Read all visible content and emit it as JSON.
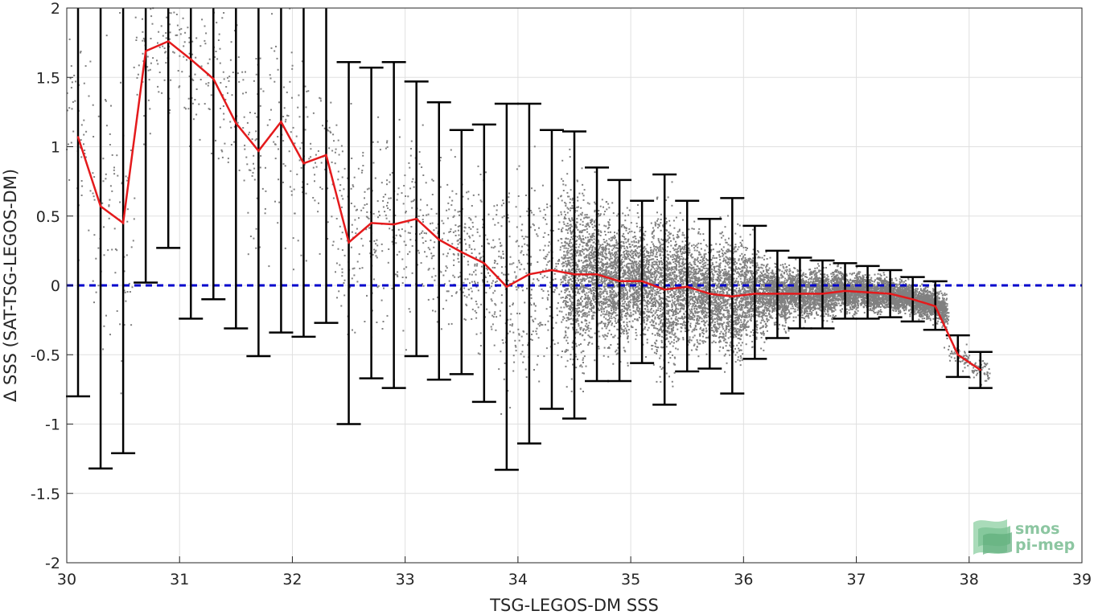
{
  "chart_data": {
    "type": "scatter",
    "xlabel": "TSG-LEGOS-DM SSS",
    "ylabel": "Δ SSS (SAT-TSG-LEGOS-DM)",
    "xlim": [
      30,
      39
    ],
    "ylim": [
      -2,
      2
    ],
    "x_ticks": [
      "30",
      "31",
      "32",
      "33",
      "34",
      "35",
      "36",
      "37",
      "38",
      "39"
    ],
    "y_ticks": [
      "-2",
      "-1.5",
      "-1",
      "-0.5",
      "0",
      "0.5",
      "1",
      "1.5",
      "2"
    ],
    "grid": true,
    "reference_line": {
      "y": 0,
      "style": "dashed",
      "color": "#0000cc"
    },
    "scatter_color": "#808080",
    "series": [
      {
        "type": "line",
        "color": "#e41a1c",
        "x": [
          30.1,
          30.3,
          30.5,
          30.7,
          30.9,
          31.1,
          31.3,
          31.5,
          31.7,
          31.9,
          32.1,
          32.3,
          32.5,
          32.7,
          32.9,
          33.1,
          33.3,
          33.5,
          33.7,
          33.9,
          34.1,
          34.3,
          34.5,
          34.7,
          34.9,
          35.1,
          35.3,
          35.5,
          35.7,
          35.9,
          36.1,
          36.3,
          36.5,
          36.7,
          36.9,
          37.1,
          37.3,
          37.5,
          37.7,
          37.9,
          38.1
        ],
        "y": [
          1.07,
          0.57,
          0.45,
          1.69,
          1.76,
          1.63,
          1.49,
          1.17,
          0.97,
          1.18,
          0.88,
          0.94,
          0.31,
          0.45,
          0.44,
          0.48,
          0.33,
          0.24,
          0.16,
          -0.01,
          0.08,
          0.11,
          0.08,
          0.08,
          0.03,
          0.03,
          -0.03,
          -0.01,
          -0.06,
          -0.08,
          -0.06,
          -0.06,
          -0.06,
          -0.06,
          -0.04,
          -0.05,
          -0.06,
          -0.1,
          -0.15,
          -0.5,
          -0.61
        ]
      },
      {
        "type": "errorbar",
        "color": "#000000",
        "x": [
          30.1,
          30.3,
          30.5,
          30.7,
          30.9,
          31.1,
          31.3,
          31.5,
          31.7,
          31.9,
          32.1,
          32.3,
          32.5,
          32.7,
          32.9,
          33.1,
          33.3,
          33.5,
          33.7,
          33.9,
          34.1,
          34.3,
          34.5,
          34.7,
          34.9,
          35.1,
          35.3,
          35.5,
          35.7,
          35.9,
          36.1,
          36.3,
          36.5,
          36.7,
          36.9,
          37.1,
          37.3,
          37.5,
          37.7,
          37.9,
          38.1
        ],
        "low": [
          -0.8,
          -1.32,
          -1.21,
          0.02,
          0.27,
          -0.24,
          -0.1,
          -0.31,
          -0.51,
          -0.34,
          -0.37,
          -0.27,
          -1.0,
          -0.67,
          -0.74,
          -0.51,
          -0.68,
          -0.64,
          -0.84,
          -1.33,
          -1.14,
          -0.89,
          -0.96,
          -0.69,
          -0.69,
          -0.56,
          -0.86,
          -0.62,
          -0.6,
          -0.78,
          -0.53,
          -0.38,
          -0.31,
          -0.31,
          -0.24,
          -0.24,
          -0.23,
          -0.26,
          -0.32,
          -0.66,
          -0.74
        ],
        "high": [
          2.0,
          2.0,
          2.0,
          2.0,
          2.0,
          2.0,
          2.0,
          2.0,
          2.0,
          2.0,
          2.0,
          2.0,
          1.61,
          1.57,
          1.61,
          1.47,
          1.32,
          1.12,
          1.16,
          1.31,
          1.31,
          1.12,
          1.11,
          0.85,
          0.76,
          0.61,
          0.8,
          0.61,
          0.48,
          0.63,
          0.43,
          0.25,
          0.2,
          0.18,
          0.16,
          0.14,
          0.11,
          0.06,
          0.03,
          -0.36,
          -0.48
        ]
      }
    ]
  },
  "logo": {
    "line1": "smos",
    "line2": "pi-mep"
  }
}
